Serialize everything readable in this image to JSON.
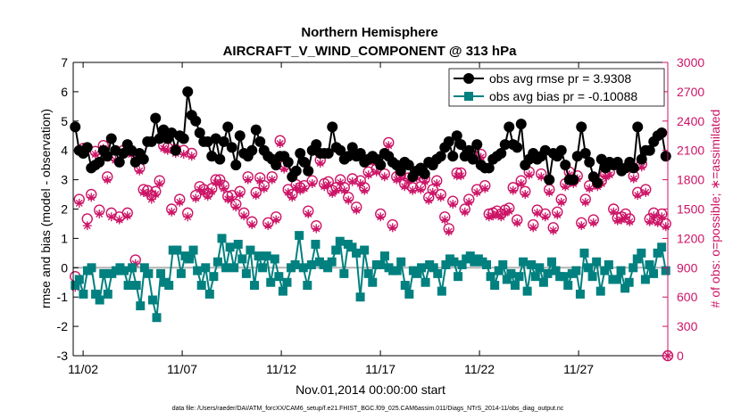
{
  "chart_data": {
    "type": "line",
    "title": "Northern Hemisphere",
    "subtitle": "AIRCRAFT_V_WIND_COMPONENT @ 313 hPa",
    "xlabel": "Nov.01,2014 00:00:00 start",
    "ylabel": "rmse and bias (model - observation)",
    "y2label": "# of obs: o=possible; ∗=assimilated",
    "footnote": "data file: /Users/raeder/DAI/ATM_forcXX/CAM6_setup/f.e21.FHIST_BGC.f09_025.CAM6assim.011/Diags_NTrS_2014-11/obs_diag_output.nc",
    "x_unit": "days since Nov.01,2014 00:00",
    "xlim": [
      0.5,
      30.5
    ],
    "ylim": [
      -3,
      7
    ],
    "y2lim": [
      0,
      3000
    ],
    "xticks": [
      1,
      6,
      11,
      16,
      21,
      26
    ],
    "xtick_labels": [
      "11/02",
      "11/07",
      "11/12",
      "11/17",
      "11/22",
      "11/27"
    ],
    "yticks": [
      -3,
      -2,
      -1,
      0,
      1,
      2,
      3,
      4,
      5,
      6,
      7
    ],
    "y2ticks": [
      0,
      300,
      600,
      900,
      1200,
      1500,
      1800,
      2100,
      2400,
      2700,
      3000
    ],
    "legend_position": "top-right",
    "colors": {
      "rmse": "#000000",
      "bias": "#00807f",
      "obs": "#cc1466",
      "zero_line": "#b3b3b3"
    },
    "series": [
      {
        "name": "obs avg rmse pr = 3.9308",
        "axis": "left",
        "values": [
          4.8,
          4.0,
          3.9,
          4.1,
          3.4,
          3.5,
          3.6,
          4.0,
          3.8,
          4.4,
          4.0,
          3.6,
          3.9,
          4.2,
          4.0,
          3.6,
          3.9,
          3.7,
          4.3,
          4.3,
          5.1,
          4.4,
          4.7,
          4.4,
          4.6,
          4.0,
          4.5,
          4.4,
          6.0,
          5.2,
          5.0,
          4.6,
          4.3,
          4.3,
          3.8,
          4.4,
          3.7,
          4.3,
          4.8,
          4.1,
          3.5,
          4.5,
          3.9,
          3.8,
          4.0,
          4.7,
          4.3,
          4.0,
          3.8,
          3.7,
          3.5,
          3.8,
          3.8,
          3.6,
          3.1,
          3.3,
          3.9,
          3.6,
          3.3,
          4.0,
          4.2,
          3.9,
          3.9,
          3.9,
          4.8,
          4.1,
          4.0,
          3.7,
          3.8,
          4.1,
          3.8,
          3.9,
          3.6,
          3.7,
          3.8,
          3.7,
          3.5,
          3.9,
          3.8,
          3.6,
          3.5,
          3.3,
          3.6,
          3.5,
          3.1,
          3.3,
          3.4,
          3.2,
          3.6,
          3.5,
          3.7,
          3.8,
          4.1,
          4.3,
          3.8,
          4.5,
          4.2,
          3.8,
          4.0,
          3.7,
          4.2,
          3.5,
          3.4,
          3.4,
          3.7,
          3.8,
          3.9,
          4.2,
          4.8,
          4.2,
          4.1,
          4.9,
          3.5,
          3.7,
          3.9,
          3.7,
          3.8,
          4.0,
          3.0,
          3.9,
          3.8,
          4.0,
          3.5,
          3.0,
          3.0,
          3.8,
          4.8,
          3.9,
          3.6,
          3.1,
          2.9,
          3.7,
          3.4,
          3.6,
          3.5,
          3.6,
          3.3,
          3.4,
          3.6,
          3.4,
          4.8,
          3.7,
          4.0,
          4.0,
          4.3,
          4.5,
          4.6,
          3.8
        ]
      },
      {
        "name": "obs avg bias pr = -0.10088",
        "axis": "left",
        "values": [
          -0.6,
          -0.4,
          -0.9,
          -0.1,
          0.0,
          -0.9,
          -1.1,
          -0.2,
          -0.9,
          -0.2,
          -0.1,
          0.0,
          -0.1,
          -0.6,
          0.0,
          -0.6,
          -1.3,
          0.0,
          -0.2,
          -1.1,
          -1.7,
          -0.2,
          -0.5,
          -0.6,
          0.6,
          0.6,
          -0.2,
          0.4,
          0.3,
          0.6,
          -0.1,
          -0.6,
          0.0,
          -0.9,
          -0.3,
          0.2,
          1.0,
          0.0,
          0.7,
          0.0,
          0.8,
          0.3,
          -0.2,
          0.6,
          -0.6,
          0.4,
          0.0,
          0.4,
          -0.5,
          0.3,
          -0.3,
          -0.8,
          -0.5,
          0.0,
          0.1,
          1.1,
          0.0,
          -0.6,
          0.1,
          0.8,
          0.2,
          0.1,
          0.0,
          0.2,
          0.6,
          0.9,
          -0.2,
          0.8,
          0.7,
          0.5,
          -1.0,
          0.6,
          -0.2,
          -0.5,
          0.1,
          0.1,
          0.4,
          0.0,
          -0.1,
          -0.1,
          0.2,
          -0.6,
          -0.9,
          -0.1,
          -0.2,
          0.0,
          -0.5,
          0.1,
          0.0,
          -0.2,
          -0.8,
          0.1,
          0.3,
          0.2,
          -0.3,
          0.1,
          0.3,
          0.4,
          0.2,
          0.3,
          0.2,
          0.1,
          -0.3,
          -0.6,
          -0.1,
          0.1,
          -0.4,
          -0.2,
          -0.6,
          -0.3,
          0.2,
          -0.8,
          0.1,
          -0.3,
          0.0,
          -0.5,
          -0.2,
          0.2,
          -0.1,
          -0.3,
          -0.3,
          -0.6,
          -0.2,
          -0.1,
          -0.9,
          0.5,
          0.0,
          -0.3,
          0.2,
          -0.8,
          -0.1,
          0.1,
          -0.4,
          -0.4,
          -0.1,
          -0.7,
          -0.5,
          0.0,
          0.3,
          0.5,
          -0.4,
          0.1,
          -0.2,
          0.5,
          0.7,
          -0.1
        ]
      },
      {
        "name": "possible obs (o)",
        "axis": "right",
        "marker": "circle",
        "values": [
          810,
          1600,
          2120,
          1400,
          1650,
          2090,
          1490,
          2150,
          1830,
          1460,
          2030,
          1420,
          2100,
          1460,
          2090,
          980,
          1920,
          1700,
          1690,
          1640,
          1680,
          1790,
          2150,
          2130,
          1500,
          2110,
          1600,
          2100,
          1460,
          2070,
          1640,
          1730,
          1700,
          1660,
          1710,
          1800,
          1800,
          1740,
          1630,
          1640,
          1550,
          1680,
          1460,
          1830,
          1370,
          1670,
          1820,
          1740,
          1360,
          1830,
          1420,
          2200,
          1940,
          1700,
          1650,
          1750,
          1720,
          1740,
          1480,
          1790,
          1330,
          2000,
          1760,
          1780,
          1690,
          1720,
          1800,
          1720,
          1620,
          1810,
          1520,
          1790,
          1720,
          1880,
          2010,
          1910,
          1450,
          1860,
          2180,
          1340,
          1830,
          1850,
          1760,
          1820,
          1720,
          1850,
          1730,
          1810,
          1620,
          1700,
          1790,
          1650,
          1420,
          1300,
          1580,
          1870,
          1870,
          1500,
          1600,
          2050,
          1700,
          2060,
          1740,
          1450,
          1460,
          1480,
          1450,
          1490,
          1510,
          1720,
          1390,
          1790,
          1680,
          1880,
          1340,
          1490,
          1860,
          1450,
          1700,
          1310,
          1470,
          1600,
          1760,
          1880,
          1790,
          1840,
          1360,
          1600,
          1740,
          1390,
          1760,
          1790,
          1860,
          1880,
          1500,
          1410,
          1420,
          1450,
          1400,
          1840,
          1670,
          1960,
          1700,
          1400,
          1460,
          1390,
          1450,
          1350
        ]
      },
      {
        "name": "assimilated obs (∗)",
        "axis": "right",
        "marker": "asterisk",
        "values": [
          700,
          1560,
          2100,
          1330,
          1620,
          2060,
          1450,
          2120,
          1800,
          1420,
          2000,
          1390,
          2070,
          1430,
          2060,
          940,
          1890,
          1670,
          1660,
          1600,
          1650,
          1760,
          2120,
          2100,
          1470,
          2070,
          1570,
          2060,
          1420,
          2040,
          1610,
          1700,
          1670,
          1630,
          1680,
          1770,
          1770,
          1710,
          1600,
          1600,
          1520,
          1650,
          1430,
          1800,
          1340,
          1640,
          1790,
          1710,
          1330,
          1800,
          1390,
          2170,
          1910,
          1670,
          1620,
          1720,
          1690,
          1710,
          1450,
          1760,
          1300,
          1970,
          1730,
          1750,
          1660,
          1690,
          1770,
          1690,
          1590,
          1780,
          1490,
          1760,
          1690,
          1850,
          1980,
          1880,
          1420,
          1830,
          2150,
          1310,
          1800,
          1820,
          1730,
          1790,
          1690,
          1820,
          1700,
          1780,
          1590,
          1670,
          1760,
          1620,
          1390,
          1270,
          1550,
          1840,
          1840,
          1470,
          1570,
          2020,
          1670,
          2030,
          1710,
          1420,
          1430,
          1450,
          1420,
          1460,
          1480,
          1690,
          1360,
          1760,
          1650,
          1850,
          1310,
          1460,
          1830,
          1420,
          1670,
          1280,
          1440,
          1570,
          1730,
          1850,
          1760,
          1810,
          1330,
          1570,
          1710,
          1360,
          1730,
          1760,
          1830,
          1850,
          1470,
          1380,
          1390,
          1420,
          1370,
          1810,
          1640,
          1930,
          1670,
          1370,
          1430,
          1360,
          1420,
          1320
        ]
      }
    ]
  }
}
